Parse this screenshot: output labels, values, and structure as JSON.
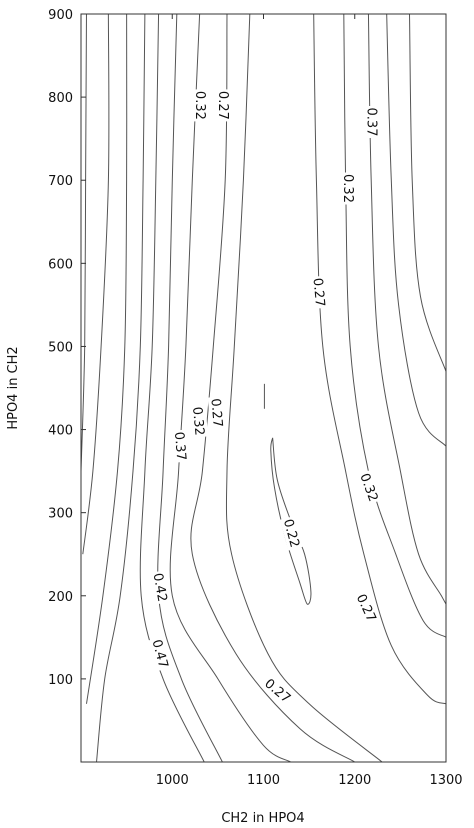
{
  "chart_data": {
    "type": "contour",
    "xlabel": "CH2 in HPO4",
    "ylabel": "HPO4 in CH2",
    "xlim": [
      900,
      1300
    ],
    "ylim": [
      0,
      900
    ],
    "x_ticks": [
      1000,
      1100,
      1200,
      1300
    ],
    "y_ticks": [
      100,
      200,
      300,
      400,
      500,
      600,
      700,
      800,
      900
    ],
    "grid": false,
    "contours": [
      {
        "level_label": "",
        "points": [
          [
            906,
            900
          ],
          [
            905,
            700
          ],
          [
            904,
            500
          ],
          [
            900,
            350
          ]
        ]
      },
      {
        "level_label": "",
        "points": [
          [
            930,
            900
          ],
          [
            930,
            700
          ],
          [
            922,
            500
          ],
          [
            913,
            350
          ],
          [
            902,
            250
          ]
        ]
      },
      {
        "level_label": "",
        "points": [
          [
            950,
            900
          ],
          [
            950,
            700
          ],
          [
            948,
            500
          ],
          [
            940,
            350
          ],
          [
            924,
            200
          ],
          [
            906,
            70
          ]
        ]
      },
      {
        "level_label": "",
        "points": [
          [
            970,
            900
          ],
          [
            968,
            700
          ],
          [
            965,
            500
          ],
          [
            957,
            350
          ],
          [
            943,
            200
          ],
          [
            926,
            100
          ],
          [
            917,
            0
          ]
        ]
      },
      {
        "level_label": "0.47",
        "points": [
          [
            985,
            900
          ],
          [
            982,
            700
          ],
          [
            978,
            500
          ],
          [
            970,
            350
          ],
          [
            966,
            200
          ],
          [
            990,
            100
          ],
          [
            1035,
            0
          ]
        ]
      },
      {
        "level_label": "0.42",
        "points": [
          [
            1005,
            900
          ],
          [
            1000,
            700
          ],
          [
            996,
            500
          ],
          [
            990,
            350
          ],
          [
            985,
            200
          ],
          [
            1010,
            100
          ],
          [
            1055,
            0
          ]
        ]
      },
      {
        "level_label": "0.37",
        "points": [
          [
            1030,
            900
          ],
          [
            1022,
            700
          ],
          [
            1015,
            500
          ],
          [
            1007,
            350
          ],
          [
            1000,
            200
          ],
          [
            1050,
            100
          ],
          [
            1100,
            20
          ],
          [
            1130,
            0
          ]
        ]
      },
      {
        "level_label": "0.32",
        "points": [
          [
            1060,
            900
          ],
          [
            1058,
            700
          ],
          [
            1045,
            500
          ],
          [
            1033,
            350
          ],
          [
            1022,
            250
          ],
          [
            1070,
            130
          ],
          [
            1140,
            40
          ],
          [
            1200,
            0
          ]
        ]
      },
      {
        "level_label": "0.27",
        "points": [
          [
            1085,
            900
          ],
          [
            1078,
            700
          ],
          [
            1068,
            500
          ],
          [
            1060,
            350
          ],
          [
            1065,
            250
          ],
          [
            1105,
            130
          ],
          [
            1150,
            70
          ],
          [
            1230,
            0
          ]
        ]
      },
      {
        "level_label": "0.27",
        "points": [
          [
            1155,
            900
          ],
          [
            1158,
            700
          ],
          [
            1165,
            500
          ],
          [
            1190,
            350
          ],
          [
            1210,
            250
          ],
          [
            1240,
            140
          ],
          [
            1280,
            80
          ],
          [
            1300,
            70
          ]
        ]
      },
      {
        "level_label": "0.32",
        "points": [
          [
            1188,
            900
          ],
          [
            1190,
            700
          ],
          [
            1195,
            500
          ],
          [
            1215,
            350
          ],
          [
            1245,
            250
          ],
          [
            1275,
            170
          ],
          [
            1300,
            150
          ]
        ]
      },
      {
        "level_label": "0.37",
        "points": [
          [
            1215,
            900
          ],
          [
            1218,
            700
          ],
          [
            1226,
            500
          ],
          [
            1250,
            350
          ],
          [
            1270,
            250
          ],
          [
            1295,
            200
          ],
          [
            1300,
            190
          ]
        ]
      },
      {
        "level_label": "",
        "points": [
          [
            1235,
            900
          ],
          [
            1240,
            700
          ],
          [
            1248,
            550
          ],
          [
            1270,
            420
          ],
          [
            1300,
            380
          ]
        ]
      },
      {
        "level_label": "",
        "points": [
          [
            1260,
            900
          ],
          [
            1263,
            700
          ],
          [
            1272,
            560
          ],
          [
            1300,
            470
          ]
        ]
      },
      {
        "level_label": "0.22",
        "points": [
          [
            1110,
            390
          ],
          [
            1115,
            340
          ],
          [
            1130,
            290
          ],
          [
            1145,
            250
          ],
          [
            1152,
            205
          ],
          [
            1148,
            190
          ],
          [
            1140,
            215
          ],
          [
            1124,
            270
          ],
          [
            1112,
            330
          ],
          [
            1108,
            375
          ],
          [
            1110,
            390
          ]
        ]
      },
      {
        "level_label": "",
        "points": [
          [
            1101,
            455
          ],
          [
            1101,
            425
          ]
        ]
      }
    ],
    "labels": [
      {
        "text": "0.27",
        "x": 1055,
        "y": 790,
        "angle": 90
      },
      {
        "text": "0.32",
        "x": 1030,
        "y": 790,
        "angle": 90
      },
      {
        "text": "0.27",
        "x": 1048,
        "y": 420,
        "angle": 85
      },
      {
        "text": "0.32",
        "x": 1028,
        "y": 410,
        "angle": 85
      },
      {
        "text": "0.37",
        "x": 1008,
        "y": 380,
        "angle": 85
      },
      {
        "text": "0.42",
        "x": 986,
        "y": 210,
        "angle": 80
      },
      {
        "text": "0.47",
        "x": 986,
        "y": 130,
        "angle": 75
      },
      {
        "text": "0.27",
        "x": 1115,
        "y": 85,
        "angle": 40
      },
      {
        "text": "0.37",
        "x": 1218,
        "y": 770,
        "angle": 90
      },
      {
        "text": "0.32",
        "x": 1192,
        "y": 690,
        "angle": 90
      },
      {
        "text": "0.27",
        "x": 1160,
        "y": 565,
        "angle": 85
      },
      {
        "text": "0.22",
        "x": 1130,
        "y": 275,
        "angle": 75
      },
      {
        "text": "0.32",
        "x": 1215,
        "y": 330,
        "angle": 70
      },
      {
        "text": "0.27",
        "x": 1212,
        "y": 185,
        "angle": 65
      }
    ]
  }
}
